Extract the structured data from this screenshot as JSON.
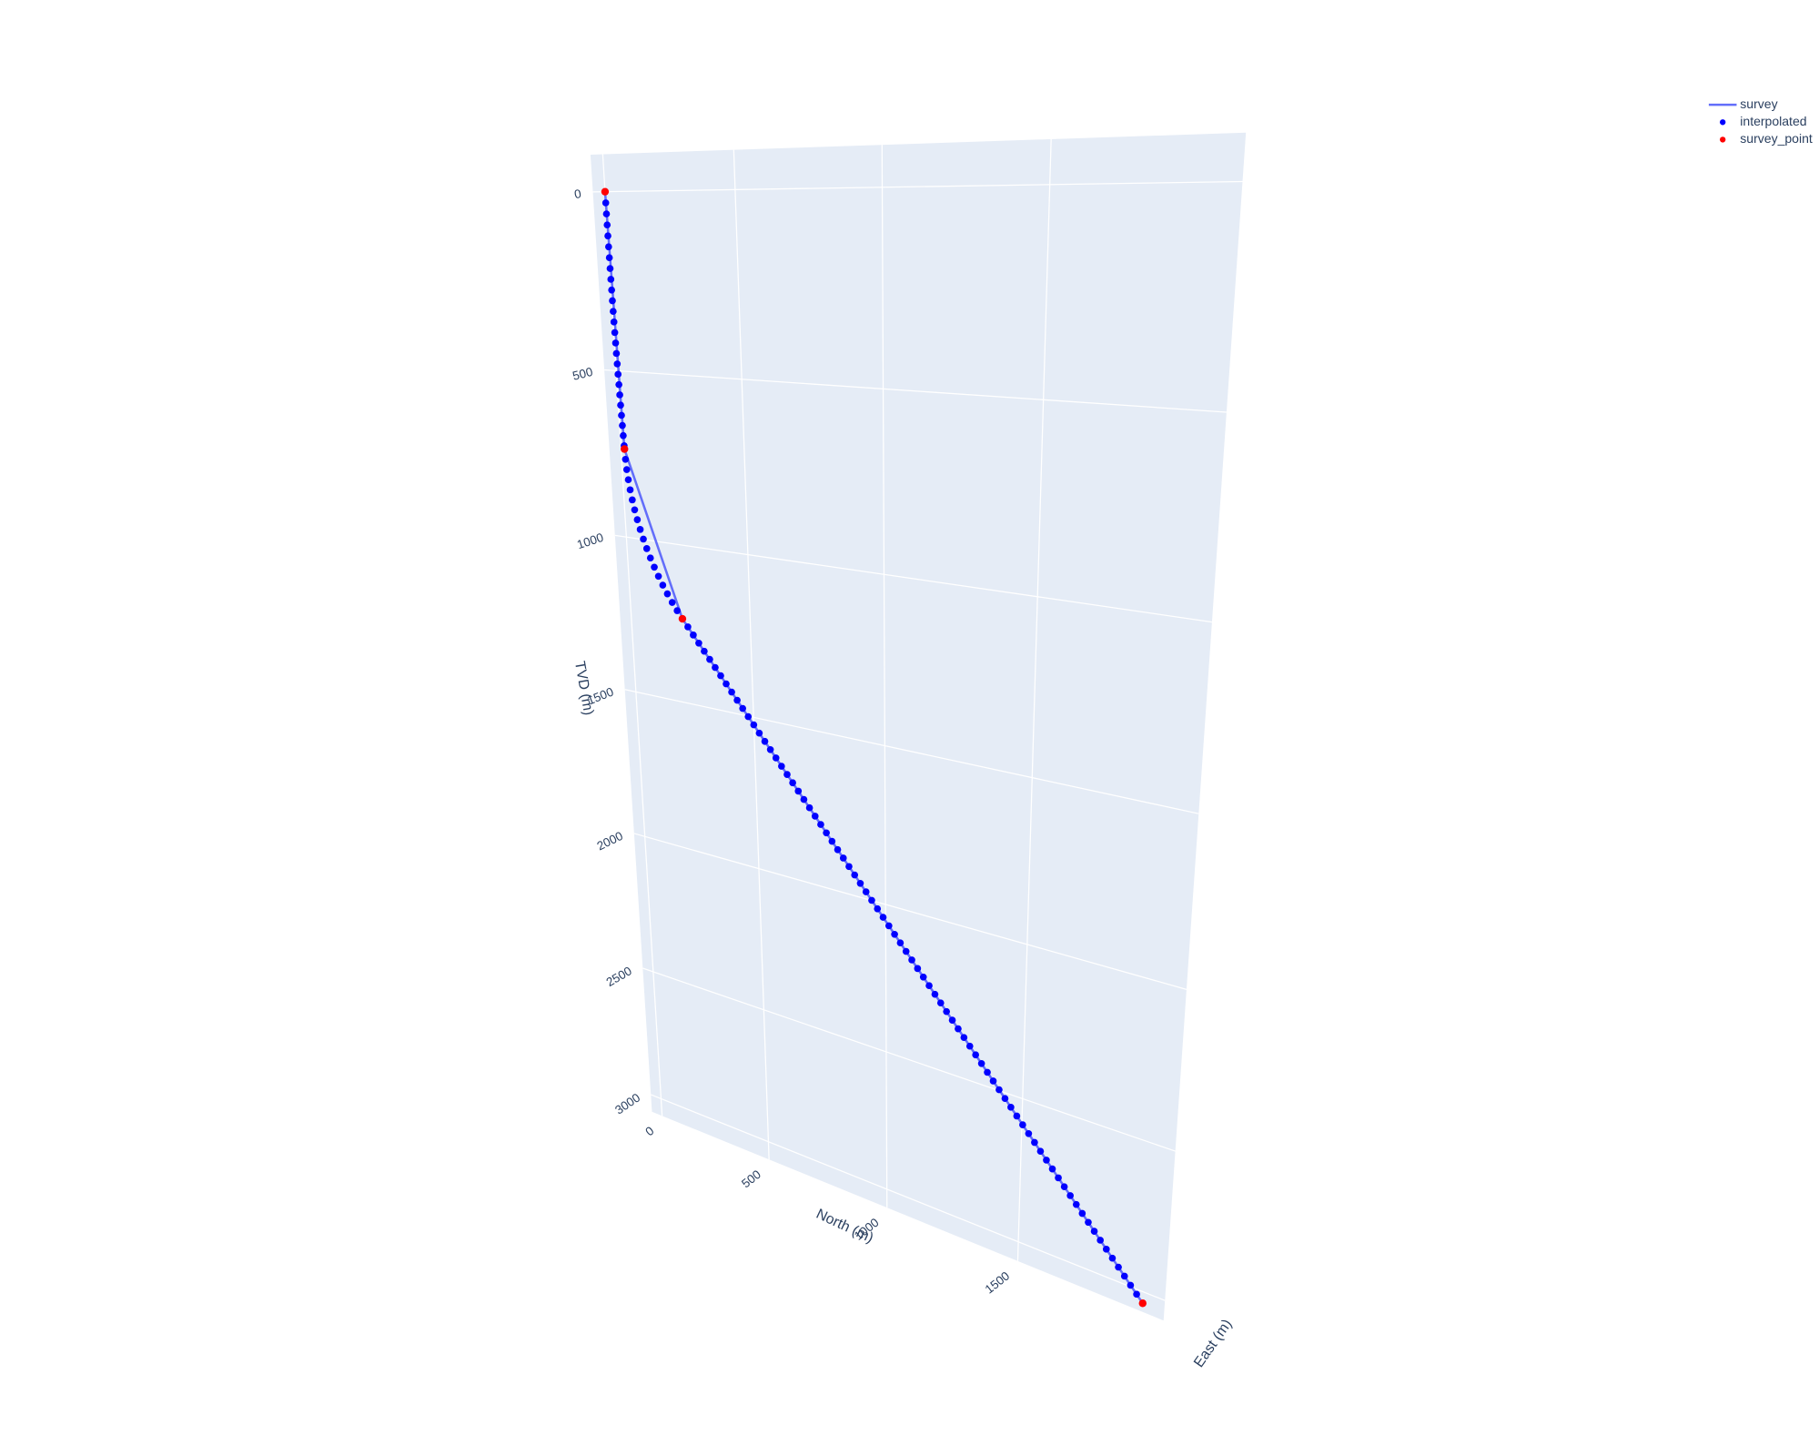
{
  "chart_data": {
    "type": "scatter3d",
    "xlabel": "North (m)",
    "ylabel": "TVD (m)",
    "zlabel": "East (m)",
    "xlim": [
      -50,
      2000
    ],
    "xticks": [
      0,
      500,
      1000,
      1500
    ],
    "ylim": [
      -100,
      3070
    ],
    "yticks": [
      0,
      500,
      1000,
      1500,
      2000,
      2500,
      3000
    ],
    "y_reversed": true,
    "grid": true,
    "legend": "top-right",
    "series": [
      {
        "name": "survey",
        "mode": "lines",
        "color": "#636efa",
        "x": [
          0,
          15,
          222,
          1930
        ],
        "y": [
          0,
          730,
          1230,
          3040
        ]
      },
      {
        "name": "interpolated",
        "mode": "markers",
        "color": "#0000ff",
        "x": [
          0,
          0,
          0.1,
          0.2,
          0.4,
          0.6,
          0.9,
          1.2,
          1.6,
          2.1,
          2.5,
          3.1,
          3.6,
          4.3,
          5,
          5.7,
          6.5,
          7.3,
          8.2,
          9.1,
          10.1,
          11.2,
          12.3,
          13.4,
          14.6,
          16.7,
          19.6,
          23.7,
          29,
          35.5,
          43.2,
          52.1,
          62.2,
          73.4,
          85.7,
          99.1,
          113.6,
          129.2,
          145.8,
          163.5,
          182.1,
          201.5,
          222,
          243.4,
          264.7,
          286.1,
          307.4,
          328.8,
          350.1,
          371.5,
          392.8,
          414.2,
          435.5,
          456.9,
          478.2,
          499.6,
          520.9,
          542.3,
          563.6,
          585,
          606.3,
          627.7,
          649,
          670.4,
          691.7,
          713.1,
          734.4,
          755.8,
          777.1,
          798.5,
          819.8,
          841.2,
          862.5,
          883.9,
          905.2,
          926.6,
          947.9,
          969.3,
          990.6,
          1012,
          1033.3,
          1054.7,
          1076,
          1097.4,
          1118.7,
          1140.1,
          1161.4,
          1182.8,
          1204.1,
          1225.5,
          1246.8,
          1268.2,
          1289.5,
          1310.9,
          1332.2,
          1353.6,
          1374.9,
          1396.3,
          1417.6,
          1439,
          1460.3,
          1481.7,
          1503,
          1524.4,
          1545.7,
          1567.1,
          1588.4,
          1609.8,
          1631.1,
          1652.5,
          1673.8,
          1695.2,
          1716.5,
          1737.9,
          1759.2,
          1780.6,
          1801.9,
          1823.3,
          1844.6,
          1866,
          1887.3,
          1908.7,
          1930
        ],
        "y": [
          0,
          30,
          60,
          90,
          120,
          150,
          180,
          210,
          240,
          270,
          300,
          330,
          360,
          390,
          420,
          450,
          480,
          510,
          540,
          570,
          600,
          630,
          660,
          690,
          720,
          760.7,
          791.3,
          821.7,
          852,
          882,
          911.7,
          941.1,
          970.2,
          998.8,
          1026.9,
          1054.6,
          1081.6,
          1108.1,
          1133.9,
          1159.1,
          1183.6,
          1207.1,
          1230,
          1252.6,
          1275.3,
          1297.9,
          1320.5,
          1343.1,
          1365.8,
          1388.4,
          1411,
          1433.6,
          1456.3,
          1478.9,
          1501.5,
          1524.1,
          1546.8,
          1569.4,
          1592,
          1614.6,
          1637.3,
          1659.9,
          1682.5,
          1705.1,
          1727.8,
          1750.4,
          1773,
          1795.6,
          1818.3,
          1840.9,
          1863.5,
          1886.1,
          1908.8,
          1931.4,
          1954,
          1976.6,
          1999.3,
          2021.9,
          2044.5,
          2067.1,
          2089.8,
          2112.4,
          2135,
          2157.6,
          2180.3,
          2202.9,
          2225.5,
          2248.1,
          2270.8,
          2293.4,
          2316,
          2338.6,
          2361.3,
          2383.9,
          2406.5,
          2429.1,
          2451.8,
          2474.4,
          2497,
          2519.6,
          2542.3,
          2564.9,
          2587.5,
          2610.1,
          2632.8,
          2655.4,
          2678,
          2700.6,
          2723.3,
          2745.9,
          2768.5,
          2791.1,
          2813.8,
          2836.4,
          2859,
          2881.6,
          2904.3,
          2926.9,
          2949.5,
          2972.1,
          2994.8,
          3017.4,
          3040
        ]
      },
      {
        "name": "survey_point",
        "mode": "markers",
        "color": "#ff0000",
        "x": [
          0,
          15,
          222,
          1930
        ],
        "y": [
          0,
          730,
          1230,
          3040
        ]
      }
    ]
  }
}
